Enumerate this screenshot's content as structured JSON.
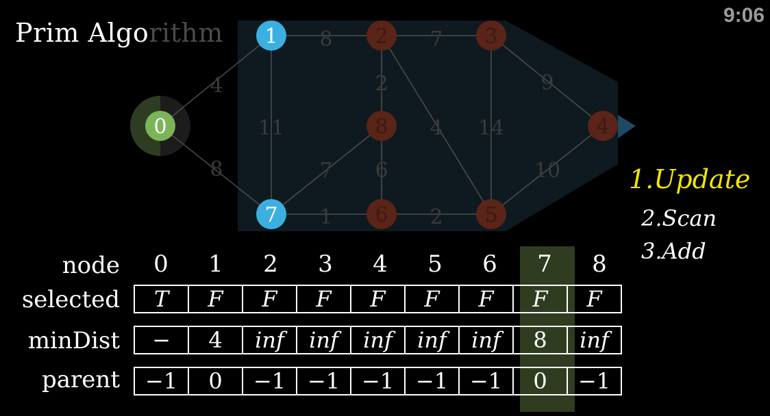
{
  "title": {
    "visible": "Prim Algo",
    "dim": "rithm"
  },
  "timer": "9:06",
  "steps": [
    "1.Update",
    "2.Scan",
    "3.Add"
  ],
  "graph": {
    "nodes": [
      {
        "id": "0",
        "state": "selected",
        "color": "#7cb45a"
      },
      {
        "id": "1",
        "state": "candidate",
        "color": "#3bb0e0"
      },
      {
        "id": "2",
        "state": "unvisited",
        "color": "#5a2418"
      },
      {
        "id": "3",
        "state": "unvisited",
        "color": "#5a2418"
      },
      {
        "id": "4",
        "state": "unvisited",
        "color": "#5a2418"
      },
      {
        "id": "5",
        "state": "unvisited",
        "color": "#5a2418"
      },
      {
        "id": "6",
        "state": "unvisited",
        "color": "#5a2418"
      },
      {
        "id": "7",
        "state": "candidate",
        "color": "#3bb0e0"
      },
      {
        "id": "8",
        "state": "unvisited",
        "color": "#5a2418"
      }
    ],
    "edges": [
      {
        "from": "0",
        "to": "1",
        "weight": "4"
      },
      {
        "from": "0",
        "to": "7",
        "weight": "8"
      },
      {
        "from": "1",
        "to": "2",
        "weight": "8"
      },
      {
        "from": "1",
        "to": "7",
        "weight": "11"
      },
      {
        "from": "2",
        "to": "3",
        "weight": "7"
      },
      {
        "from": "2",
        "to": "8",
        "weight": "2"
      },
      {
        "from": "2",
        "to": "5",
        "weight": "4"
      },
      {
        "from": "3",
        "to": "4",
        "weight": "9"
      },
      {
        "from": "3",
        "to": "5",
        "weight": "14"
      },
      {
        "from": "4",
        "to": "5",
        "weight": "10"
      },
      {
        "from": "5",
        "to": "6",
        "weight": "2"
      },
      {
        "from": "6",
        "to": "7",
        "weight": "1"
      },
      {
        "from": "6",
        "to": "8",
        "weight": "6"
      },
      {
        "from": "7",
        "to": "8",
        "weight": "7"
      }
    ]
  },
  "table": {
    "labels": {
      "node": "node",
      "selected": "selected",
      "minDist": "minDist",
      "parent": "parent"
    },
    "nodes": [
      "0",
      "1",
      "2",
      "3",
      "4",
      "5",
      "6",
      "7",
      "8"
    ],
    "selected": [
      "T",
      "F",
      "F",
      "F",
      "F",
      "F",
      "F",
      "F",
      "F"
    ],
    "minDist": [
      "−",
      "4",
      "inf",
      "inf",
      "inf",
      "inf",
      "inf",
      "8",
      "inf"
    ],
    "parent": [
      "−1",
      "0",
      "−1",
      "−1",
      "−1",
      "−1",
      "−1",
      "0",
      "−1"
    ],
    "highlight_column": "7"
  }
}
